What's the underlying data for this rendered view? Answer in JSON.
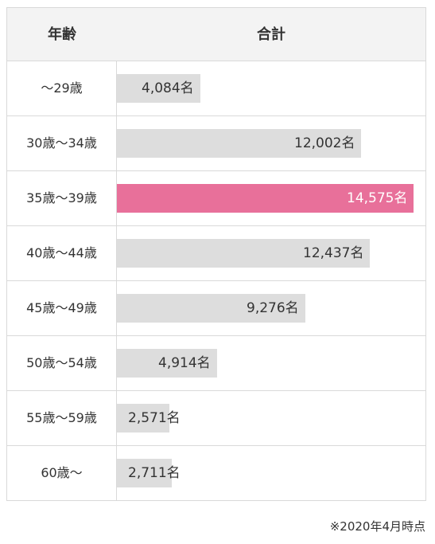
{
  "header": {
    "age_label": "年齢",
    "total_label": "合計"
  },
  "chart_data": {
    "type": "bar",
    "orientation": "horizontal",
    "categories": [
      "〜29歳",
      "30歳〜34歳",
      "35歳〜39歳",
      "40歳〜44歳",
      "45歳〜49歳",
      "50歳〜54歳",
      "55歳〜59歳",
      "60歳〜"
    ],
    "values": [
      4084,
      12002,
      14575,
      12437,
      9276,
      4914,
      2571,
      2711
    ],
    "value_labels": [
      "4,084名",
      "12,002名",
      "14,575名",
      "12,437名",
      "9,276名",
      "4,914名",
      "2,571名",
      "2,711名"
    ],
    "xlim": [
      0,
      14575
    ],
    "highlight_index": 2,
    "colors": {
      "bar": "#dddddd",
      "highlight": "#e8709a"
    }
  },
  "footnote": "※2020年4月時点"
}
